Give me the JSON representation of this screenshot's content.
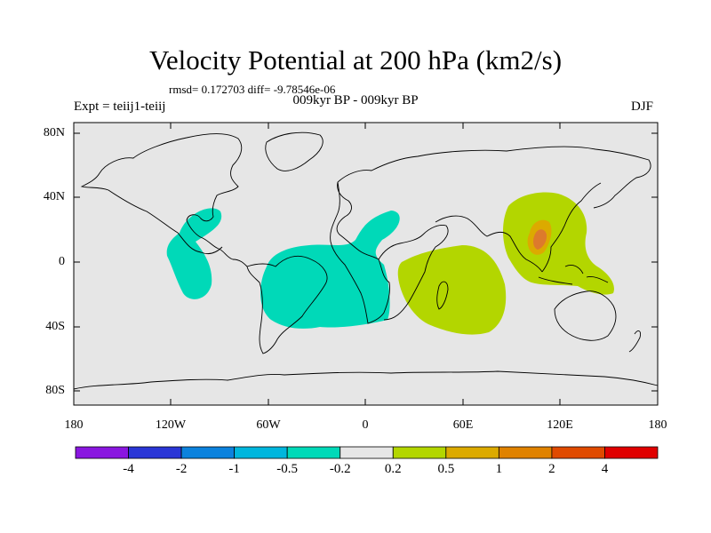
{
  "title": "Velocity Potential at 200 hPa (km2/s)",
  "stats": "rmsd= 0.172703 diff= -9.78546e-06",
  "experiment": "Expt = teiij1-teiij",
  "period": "009kyr BP - 009kyr BP",
  "season": "DJF",
  "map": {
    "lat_labels": [
      "80N",
      "40N",
      "0",
      "40S",
      "80S"
    ],
    "lon_labels": [
      "180",
      "120W",
      "60W",
      "0",
      "60E",
      "120E",
      "180"
    ],
    "colors": {
      "land_sea_background": "#e6e6e6",
      "neg_0_5_to_0_2": "#00d9b8",
      "pos_0_2_to_0_5": "#b3d600",
      "pos_0_5_to_1": "#dcaa00",
      "pos_1_to_2": "#dd7a2c",
      "coastline": "#000000"
    }
  },
  "colorbar": {
    "labels": [
      "-4",
      "-2",
      "-1",
      "-0.5",
      "-0.2",
      "0.2",
      "0.5",
      "1",
      "2",
      "4"
    ],
    "colors": [
      "#8a16e0",
      "#2a36d6",
      "#0c82dd",
      "#00b6dd",
      "#00d9b8",
      "#e6e6e6",
      "#b3d600",
      "#dcaa00",
      "#e08200",
      "#e04a00",
      "#e00000"
    ]
  }
}
